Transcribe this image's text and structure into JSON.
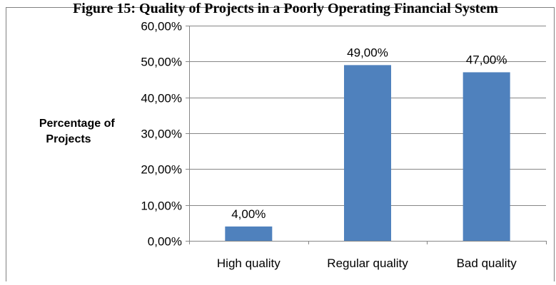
{
  "chart_data": {
    "type": "bar",
    "title": "Figure 15: Quality of Projects in a Poorly Operating Financial System",
    "xlabel": "",
    "ylabel": [
      "Percentage of",
      "Projects"
    ],
    "categories": [
      "High quality",
      "Regular quality",
      "Bad quality"
    ],
    "values": [
      4,
      49,
      47
    ],
    "data_labels": [
      "4,00%",
      "49,00%",
      "47,00%"
    ],
    "ylim": [
      0,
      60
    ],
    "yticks": [
      0,
      10,
      20,
      30,
      40,
      50,
      60
    ],
    "ytick_labels": [
      "0,00%",
      "10,00%",
      "20,00%",
      "30,00%",
      "40,00%",
      "50,00%",
      "60,00%"
    ],
    "grid": "horizontal",
    "legend": "none",
    "bar_color": "#4f81bd"
  }
}
